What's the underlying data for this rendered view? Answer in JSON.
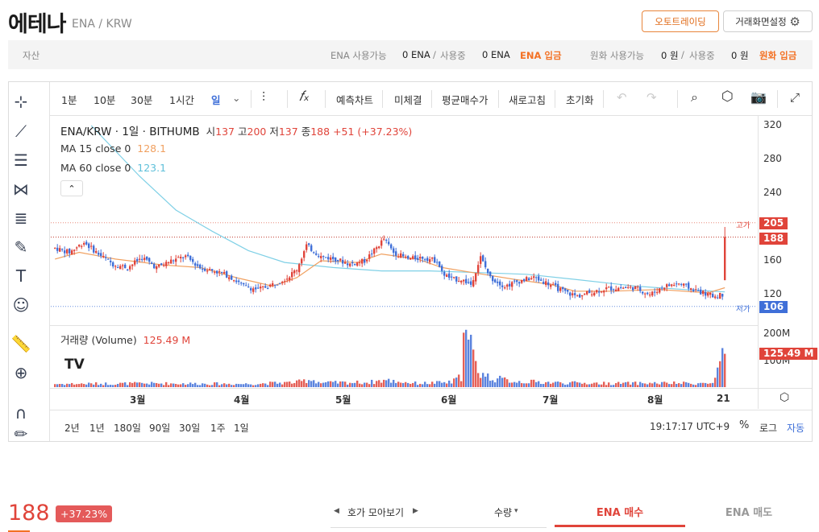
{
  "header": {
    "coin_name": "에테나",
    "pair": "ENA / KRW",
    "autotrade_label": "오토트레이딩",
    "settings_label": "거래화면설정"
  },
  "asset_bar": {
    "label": "자산",
    "ena_available_label": "ENA 사용가능",
    "ena_available": "0 ENA",
    "slash1": "/",
    "ena_in_use_label": "사용중",
    "ena_in_use": "0 ENA",
    "ena_deposit_label": "ENA 입금",
    "krw_available_label": "원화 사용가능",
    "krw_available": "0 원",
    "slash2": "/",
    "krw_in_use_label": "사용중",
    "krw_in_use": "0 원",
    "krw_deposit_label": "원화 입금"
  },
  "toolbar": {
    "intervals": [
      "1분",
      "10분",
      "30분",
      "1시간",
      "일"
    ],
    "forecast": "예측차트",
    "unfilled": "미체결",
    "avg_price": "평균매수가",
    "refresh": "새로고침",
    "reset": "초기화"
  },
  "legend": {
    "symbol": "ENA/KRW · 1일 · BITHUMB",
    "open_label": "시",
    "open": "137",
    "high_label": "고",
    "high": "200",
    "low_label": "저",
    "low": "137",
    "close_label": "종",
    "close": "188",
    "change": "+51 (+37.23%)",
    "ma15_label": "MA 15 close 0",
    "ma15_value": "128.1",
    "ma60_label": "MA 60 close 0",
    "ma60_value": "123.1",
    "volume_label": "거래량 (Volume)",
    "volume_value": "125.49 M"
  },
  "axis": {
    "y_ticks": [
      "320",
      "280",
      "240",
      "160",
      "120"
    ],
    "vol_ticks": [
      "200M",
      "100M"
    ],
    "high_tag_label": "고가",
    "high_tag": "205",
    "last_tag": "188",
    "low_tag_label": "저가",
    "low_tag": "106",
    "volume_tag": "125.49 M",
    "x_ticks": [
      "3월",
      "4월",
      "5월",
      "6월",
      "7월",
      "8월",
      "21"
    ]
  },
  "footer": {
    "ranges": [
      "2년",
      "1년",
      "180일",
      "90일",
      "30일",
      "1주",
      "1일"
    ],
    "clock": "19:17:17 UTC+9",
    "pct": "%",
    "log": "로그",
    "auto": "자동"
  },
  "order": {
    "price": "188",
    "change_pct": "+37.23%",
    "depth_view": "호가 모아보기",
    "qty_label": "수량",
    "buy_tab": "ENA 매수",
    "sell_tab": "ENA 매도"
  },
  "colors": {
    "up": "#e0443a",
    "down": "#3f6fd8",
    "ma15": "#f0a060",
    "ma60": "#7fd0e6",
    "accent": "#f37124"
  },
  "chart_data": {
    "type": "candlestick",
    "title": "ENA/KRW · 1일 · BITHUMB",
    "x_ticks": [
      "3월",
      "4월",
      "5월",
      "6월",
      "7월",
      "8월",
      "21"
    ],
    "ylim": [
      100,
      340
    ],
    "y_ticks": [
      320,
      280,
      240,
      160,
      120
    ],
    "volume_ylim": [
      0,
      230
    ],
    "volume_ticks": [
      200,
      100
    ],
    "volume_unit": "M",
    "anchors": [
      [
        0,
        175
      ],
      [
        6,
        170
      ],
      [
        12,
        182
      ],
      [
        18,
        168
      ],
      [
        24,
        156
      ],
      [
        30,
        152
      ],
      [
        36,
        164
      ],
      [
        42,
        152
      ],
      [
        48,
        160
      ],
      [
        54,
        165
      ],
      [
        60,
        152
      ],
      [
        66,
        148
      ],
      [
        72,
        142
      ],
      [
        78,
        130
      ],
      [
        84,
        126
      ],
      [
        90,
        132
      ],
      [
        96,
        140
      ],
      [
        100,
        150
      ],
      [
        104,
        178
      ],
      [
        110,
        165
      ],
      [
        116,
        162
      ],
      [
        122,
        156
      ],
      [
        128,
        160
      ],
      [
        132,
        172
      ],
      [
        136,
        186
      ],
      [
        140,
        170
      ],
      [
        146,
        162
      ],
      [
        152,
        164
      ],
      [
        158,
        160
      ],
      [
        160,
        146
      ],
      [
        164,
        138
      ],
      [
        168,
        138
      ],
      [
        172,
        132
      ],
      [
        176,
        164
      ],
      [
        180,
        140
      ],
      [
        186,
        130
      ],
      [
        192,
        136
      ],
      [
        198,
        140
      ],
      [
        204,
        133
      ],
      [
        210,
        124
      ],
      [
        216,
        118
      ],
      [
        222,
        123
      ],
      [
        228,
        127
      ],
      [
        234,
        128
      ],
      [
        240,
        128
      ],
      [
        246,
        120
      ],
      [
        252,
        130
      ],
      [
        258,
        133
      ],
      [
        264,
        126
      ],
      [
        270,
        120
      ],
      [
        273,
        118
      ],
      [
        276,
        120
      ],
      [
        277,
        188
      ]
    ],
    "volume_anchors": [
      [
        0,
        12
      ],
      [
        40,
        14
      ],
      [
        80,
        12
      ],
      [
        100,
        18
      ],
      [
        106,
        30
      ],
      [
        110,
        16
      ],
      [
        130,
        18
      ],
      [
        136,
        26
      ],
      [
        150,
        14
      ],
      [
        164,
        18
      ],
      [
        168,
        40
      ],
      [
        169,
        205
      ],
      [
        170,
        180
      ],
      [
        172,
        150
      ],
      [
        174,
        80
      ],
      [
        176,
        55
      ],
      [
        180,
        35
      ],
      [
        190,
        22
      ],
      [
        210,
        16
      ],
      [
        230,
        14
      ],
      [
        250,
        15
      ],
      [
        272,
        14
      ],
      [
        277,
        125.49
      ]
    ],
    "ma15": [
      [
        0,
        162
      ],
      [
        10,
        170
      ],
      [
        25,
        162
      ],
      [
        45,
        155
      ],
      [
        60,
        152
      ],
      [
        75,
        140
      ],
      [
        90,
        130
      ],
      [
        100,
        140
      ],
      [
        110,
        160
      ],
      [
        125,
        158
      ],
      [
        135,
        168
      ],
      [
        150,
        162
      ],
      [
        160,
        152
      ],
      [
        175,
        145
      ],
      [
        190,
        138
      ],
      [
        205,
        132
      ],
      [
        215,
        124
      ],
      [
        230,
        124
      ],
      [
        250,
        126
      ],
      [
        270,
        122
      ],
      [
        277,
        128.1
      ]
    ],
    "ma60": [
      [
        15,
        320
      ],
      [
        25,
        290
      ],
      [
        35,
        260
      ],
      [
        50,
        220
      ],
      [
        65,
        195
      ],
      [
        80,
        172
      ],
      [
        95,
        158
      ],
      [
        115,
        152
      ],
      [
        135,
        148
      ],
      [
        155,
        148
      ],
      [
        175,
        146
      ],
      [
        195,
        144
      ],
      [
        215,
        138
      ],
      [
        240,
        130
      ],
      [
        260,
        126
      ],
      [
        277,
        123.1
      ]
    ],
    "last": {
      "open": 137,
      "high": 200,
      "low": 137,
      "close": 188,
      "volume": 125.49
    },
    "period_high": 205,
    "period_low": 106
  }
}
